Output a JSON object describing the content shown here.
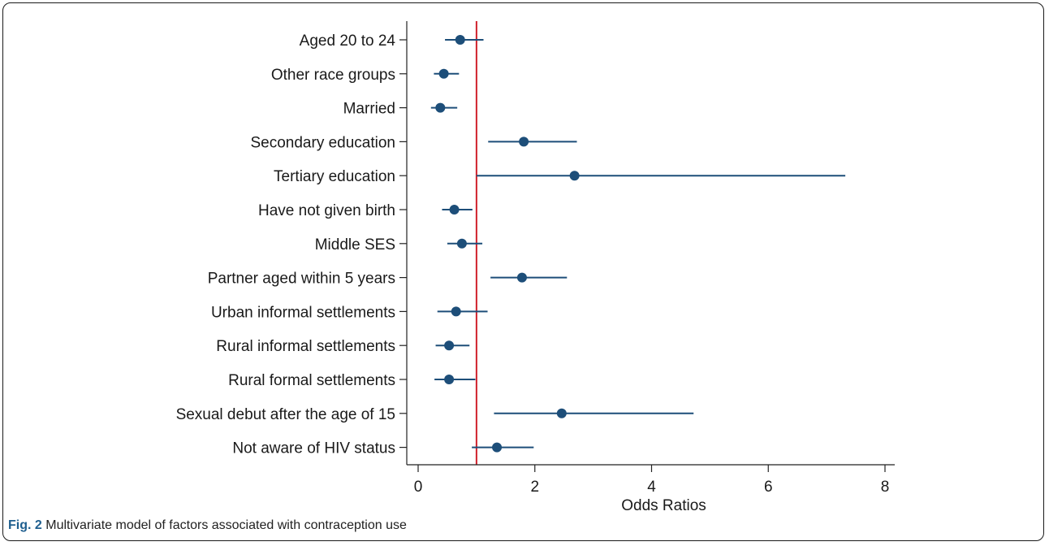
{
  "caption": {
    "label": "Fig. 2",
    "text": "Multivariate model of factors associated with contraception use"
  },
  "colors": {
    "marker": "#1d4e79",
    "reference_line": "#d0202b",
    "axis": "#222222"
  },
  "chart_data": {
    "type": "scatter",
    "subtype": "forest-plot",
    "title": "",
    "xlabel": "Odds Ratios",
    "ylabel": "",
    "xlim": [
      0,
      8
    ],
    "xticks": [
      0,
      2,
      4,
      6,
      8
    ],
    "reference_value": 1,
    "grid": false,
    "legend": "none",
    "rows": [
      {
        "label": "Aged 20 to 24",
        "estimate": 0.72,
        "lower": 0.46,
        "upper": 1.12
      },
      {
        "label": "Other race groups",
        "estimate": 0.44,
        "lower": 0.27,
        "upper": 0.7
      },
      {
        "label": "Married",
        "estimate": 0.38,
        "lower": 0.22,
        "upper": 0.67
      },
      {
        "label": "Secondary education",
        "estimate": 1.81,
        "lower": 1.2,
        "upper": 2.72
      },
      {
        "label": "Tertiary education",
        "estimate": 2.68,
        "lower": 1.0,
        "upper": 7.32
      },
      {
        "label": "Have not given birth",
        "estimate": 0.62,
        "lower": 0.41,
        "upper": 0.93
      },
      {
        "label": "Middle SES",
        "estimate": 0.75,
        "lower": 0.5,
        "upper": 1.1
      },
      {
        "label": "Partner aged within 5 years",
        "estimate": 1.78,
        "lower": 1.24,
        "upper": 2.55
      },
      {
        "label": "Urban informal settlements",
        "estimate": 0.65,
        "lower": 0.33,
        "upper": 1.19
      },
      {
        "label": "Rural informal settlements",
        "estimate": 0.53,
        "lower": 0.3,
        "upper": 0.88
      },
      {
        "label": "Rural formal settlements",
        "estimate": 0.53,
        "lower": 0.28,
        "upper": 0.98
      },
      {
        "label": "Sexual debut after the age of 15",
        "estimate": 2.46,
        "lower": 1.3,
        "upper": 4.72
      },
      {
        "label": "Not aware of HIV status",
        "estimate": 1.35,
        "lower": 0.92,
        "upper": 1.98
      }
    ]
  }
}
